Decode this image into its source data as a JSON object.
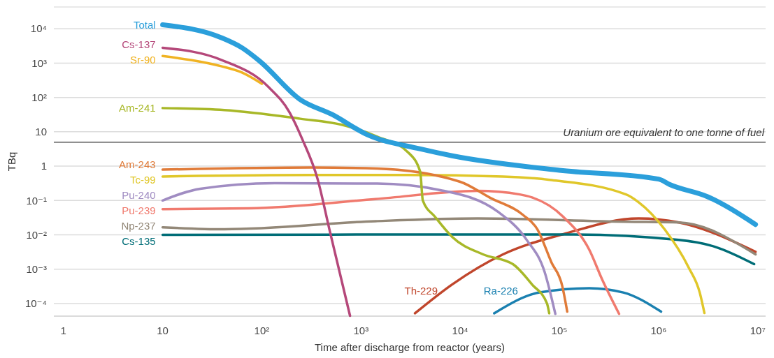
{
  "chart_data": {
    "type": "line",
    "xlabel": "Time after discharge from reactor (years)",
    "ylabel": "TBq",
    "log": "xy",
    "grid": "y",
    "xlim": [
      0.8,
      12000000
    ],
    "ylim": [
      4.3e-05,
      43000
    ],
    "xticks": [
      1,
      10,
      {
        "value": 100,
        "label": "10²"
      },
      {
        "value": 1000,
        "label": "10³"
      },
      {
        "value": 10000,
        "label": "10⁴"
      },
      {
        "value": 100000,
        "label": "10⁵"
      },
      {
        "value": 1000000,
        "label": "10⁶"
      },
      {
        "value": 10000000,
        "label": "10⁷"
      }
    ],
    "yticks": [
      {
        "value": 0.0001,
        "label": "10⁻⁴"
      },
      {
        "value": 0.001,
        "label": "10⁻³"
      },
      {
        "value": 0.01,
        "label": "10⁻²"
      },
      {
        "value": 0.1,
        "label": "10⁻¹"
      },
      1,
      10,
      {
        "value": 100,
        "label": "10²"
      },
      {
        "value": 1000,
        "label": "10³"
      },
      {
        "value": 10000,
        "label": "10⁴"
      }
    ],
    "ref_lines": [
      {
        "axis": "y",
        "value": 5,
        "label": "Uranium ore equivalent to one tonne of fuel",
        "color": "#555555"
      }
    ],
    "series": [
      {
        "name": "Total",
        "color": "#2b9fdb",
        "x": [
          10,
          39,
          63,
          95,
          246,
          510,
          1150,
          3900,
          8300,
          100000,
          1000000,
          1300000,
          3100000,
          9500000
        ],
        "values": [
          13000,
          5500,
          2800,
          1150,
          85,
          32,
          8.3,
          3.2,
          2.0,
          0.76,
          0.42,
          0.29,
          0.13,
          0.02
        ]
      },
      {
        "name": "Cs-137",
        "color": "#b5487a",
        "x": [
          10,
          39,
          117,
          190,
          257,
          365,
          480,
          775
        ],
        "values": [
          2800,
          1240,
          200,
          37,
          5.9,
          0.42,
          0.0145,
          4.4e-05
        ]
      },
      {
        "name": "Sr-90",
        "color": "#f0b323",
        "x": [
          10,
          39,
          63,
          100
        ],
        "values": [
          1600,
          810,
          530,
          250
        ]
      },
      {
        "name": "Am-241",
        "color": "#a8b828",
        "x": [
          10,
          42,
          244,
          640,
          1460,
          2950,
          3950,
          4200,
          5600,
          8300,
          17000,
          34000,
          53000,
          75000,
          79000
        ],
        "values": [
          49,
          43,
          24,
          16,
          7.2,
          2.6,
          0.69,
          0.1,
          0.033,
          0.0087,
          0.0027,
          0.0014,
          0.00036,
          0.0001,
          5.2e-05
        ]
      },
      {
        "name": "Am-243",
        "color": "#e07b39",
        "x": [
          10,
          320,
          1460,
          10000,
          20000,
          43000,
          60000,
          83000,
          107000,
          120000
        ],
        "values": [
          0.79,
          0.91,
          0.85,
          0.35,
          0.12,
          0.038,
          0.0145,
          0.0016,
          0.00032,
          5.8e-05
        ]
      },
      {
        "name": "Tc-99",
        "color": "#e0c72a",
        "x": [
          10,
          300,
          3000,
          27000,
          80000,
          470000,
          630000,
          1150000,
          2000000,
          2600000,
          2900000
        ],
        "values": [
          0.5,
          0.55,
          0.55,
          0.5,
          0.4,
          0.15,
          0.089,
          0.0145,
          0.00115,
          0.00021,
          5.3e-05
        ]
      },
      {
        "name": "Pu-240",
        "color": "#a08cc2",
        "x": [
          10,
          24,
          135,
          1460,
          6300,
          24000,
          47000,
          71000,
          91000
        ],
        "values": [
          0.1,
          0.22,
          0.32,
          0.31,
          0.2,
          0.047,
          0.007,
          0.00083,
          5e-05
        ]
      },
      {
        "name": "Pu-239",
        "color": "#f07a6e",
        "x": [
          10,
          75,
          1400,
          15000,
          40000,
          110000,
          200000,
          270000,
          400000
        ],
        "values": [
          0.056,
          0.059,
          0.11,
          0.19,
          0.15,
          0.033,
          0.0037,
          0.0005,
          5e-05
        ]
      },
      {
        "name": "Np-237",
        "color": "#938878",
        "x": [
          10,
          42,
          1400,
          15000,
          470000,
          1600000,
          9500000
        ],
        "values": [
          0.0166,
          0.0145,
          0.025,
          0.03,
          0.024,
          0.023,
          0.0027
        ]
      },
      {
        "name": "Cs-135",
        "color": "#006d77",
        "x": [
          10,
          140000,
          1600000,
          3700000,
          9200000
        ],
        "values": [
          0.01,
          0.0103,
          0.0071,
          0.0045,
          0.0014
        ]
      },
      {
        "name": "Th-229",
        "color": "#c0462c",
        "x": [
          3500,
          8300,
          27000,
          110000,
          630000,
          1600000,
          9500000
        ],
        "values": [
          5.2e-05,
          0.00036,
          0.0027,
          0.0105,
          0.03,
          0.023,
          0.0032
        ]
      },
      {
        "name": "Ra-226",
        "color": "#1a80b0",
        "x": [
          22000,
          63000,
          200000,
          440000,
          1060000
        ],
        "values": [
          5.2e-05,
          0.00021,
          0.00028,
          0.00021,
          5.8e-05
        ]
      }
    ]
  }
}
